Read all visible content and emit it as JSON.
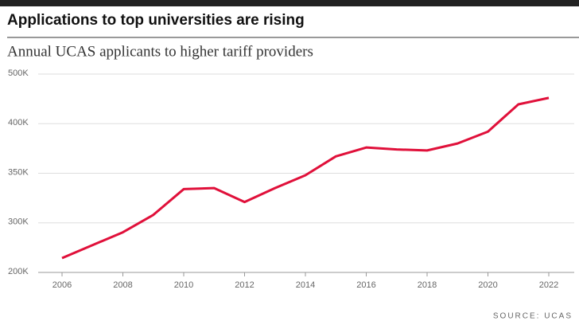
{
  "chart_data": {
    "type": "line",
    "title": "Applications to top universities are rising",
    "subtitle": "Annual UCAS applicants to higher tariff providers",
    "source": "SOURCE: UCAS",
    "x": [
      2006,
      2007,
      2008,
      2009,
      2010,
      2011,
      2012,
      2013,
      2014,
      2015,
      2016,
      2017,
      2018,
      2019,
      2020,
      2021,
      2022
    ],
    "xlim": [
      2006,
      2022
    ],
    "xticks": [
      2006,
      2008,
      2010,
      2012,
      2014,
      2016,
      2018,
      2020,
      2022
    ],
    "series": [
      {
        "name": "Applicants",
        "color": "#e0103a",
        "values": [
          229000,
          255000,
          281000,
          308000,
          334000,
          335000,
          321000,
          335000,
          348000,
          367000,
          376000,
          374000,
          373000,
          380000,
          392000,
          439000,
          452000
        ]
      }
    ],
    "ylim": [
      200000,
      500000
    ],
    "yticks": [
      {
        "value": 200000,
        "label": "200K"
      },
      {
        "value": 300000,
        "label": "300K"
      },
      {
        "value": 350000,
        "label": "350K"
      },
      {
        "value": 400000,
        "label": "400K"
      },
      {
        "value": 500000,
        "label": "500K"
      }
    ],
    "grid": true
  }
}
